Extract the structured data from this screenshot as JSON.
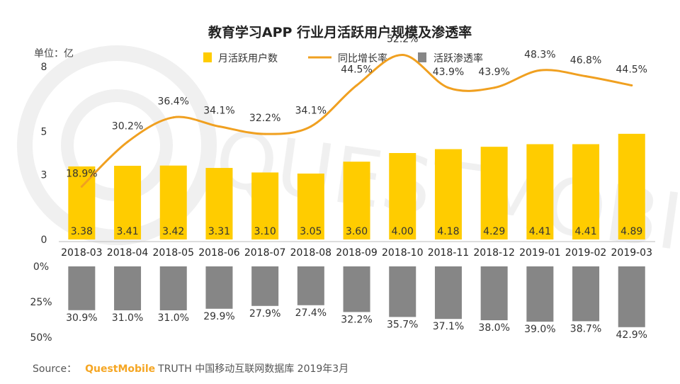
{
  "chart_data": {
    "type": "bar",
    "title": "教育学习APP 行业月活跃用户规模及渗透率",
    "unit_label": "单位：亿",
    "categories": [
      "2018-03",
      "2018-04",
      "2018-05",
      "2018-06",
      "2018-07",
      "2018-08",
      "2018-09",
      "2018-10",
      "2018-11",
      "2018-12",
      "2019-01",
      "2019-02",
      "2019-03"
    ],
    "upper_y_ticks": [
      "8",
      "5",
      "3",
      "0"
    ],
    "upper_ylim": [
      0,
      8
    ],
    "lower_y_ticks": [
      "0%",
      "25%",
      "50%"
    ],
    "lower_ylim": [
      0,
      50
    ],
    "legend": [
      "月活跃用户数",
      "同比增长率",
      "活跃渗透率"
    ],
    "series": [
      {
        "name": "月活跃用户数",
        "type": "bar",
        "values": [
          3.38,
          3.41,
          3.42,
          3.31,
          3.1,
          3.05,
          3.6,
          4.0,
          4.18,
          4.29,
          4.41,
          4.41,
          4.89
        ],
        "labels": [
          "3.38",
          "3.41",
          "3.42",
          "3.31",
          "3.10",
          "3.05",
          "3.60",
          "4.00",
          "4.18",
          "4.29",
          "4.41",
          "4.41",
          "4.89"
        ],
        "color": "#ffcc00"
      },
      {
        "name": "同比增长率",
        "type": "line",
        "values": [
          18.9,
          30.2,
          36.4,
          34.1,
          32.2,
          34.1,
          44.5,
          52.2,
          43.9,
          43.9,
          48.3,
          46.8,
          44.5
        ],
        "labels": [
          "18.9%",
          "30.2%",
          "36.4%",
          "34.1%",
          "32.2%",
          "34.1%",
          "44.5%",
          "52.2%",
          "43.9%",
          "43.9%",
          "48.3%",
          "46.8%",
          "44.5%"
        ],
        "color": "#f0a020"
      },
      {
        "name": "活跃渗透率",
        "type": "bar",
        "values": [
          30.9,
          31.0,
          31.0,
          29.9,
          27.9,
          27.4,
          32.2,
          35.7,
          37.1,
          38.0,
          39.0,
          38.7,
          42.9
        ],
        "labels": [
          "30.9%",
          "31.0%",
          "31.0%",
          "29.9%",
          "27.9%",
          "27.4%",
          "32.2%",
          "35.7%",
          "37.1%",
          "38.0%",
          "39.0%",
          "38.7%",
          "42.9%"
        ],
        "color": "#868686"
      }
    ]
  },
  "source": {
    "prefix": "Source：",
    "brand": "QuestMobile",
    "text": "TRUTH 中国移动互联网数据库 2019年3月"
  }
}
